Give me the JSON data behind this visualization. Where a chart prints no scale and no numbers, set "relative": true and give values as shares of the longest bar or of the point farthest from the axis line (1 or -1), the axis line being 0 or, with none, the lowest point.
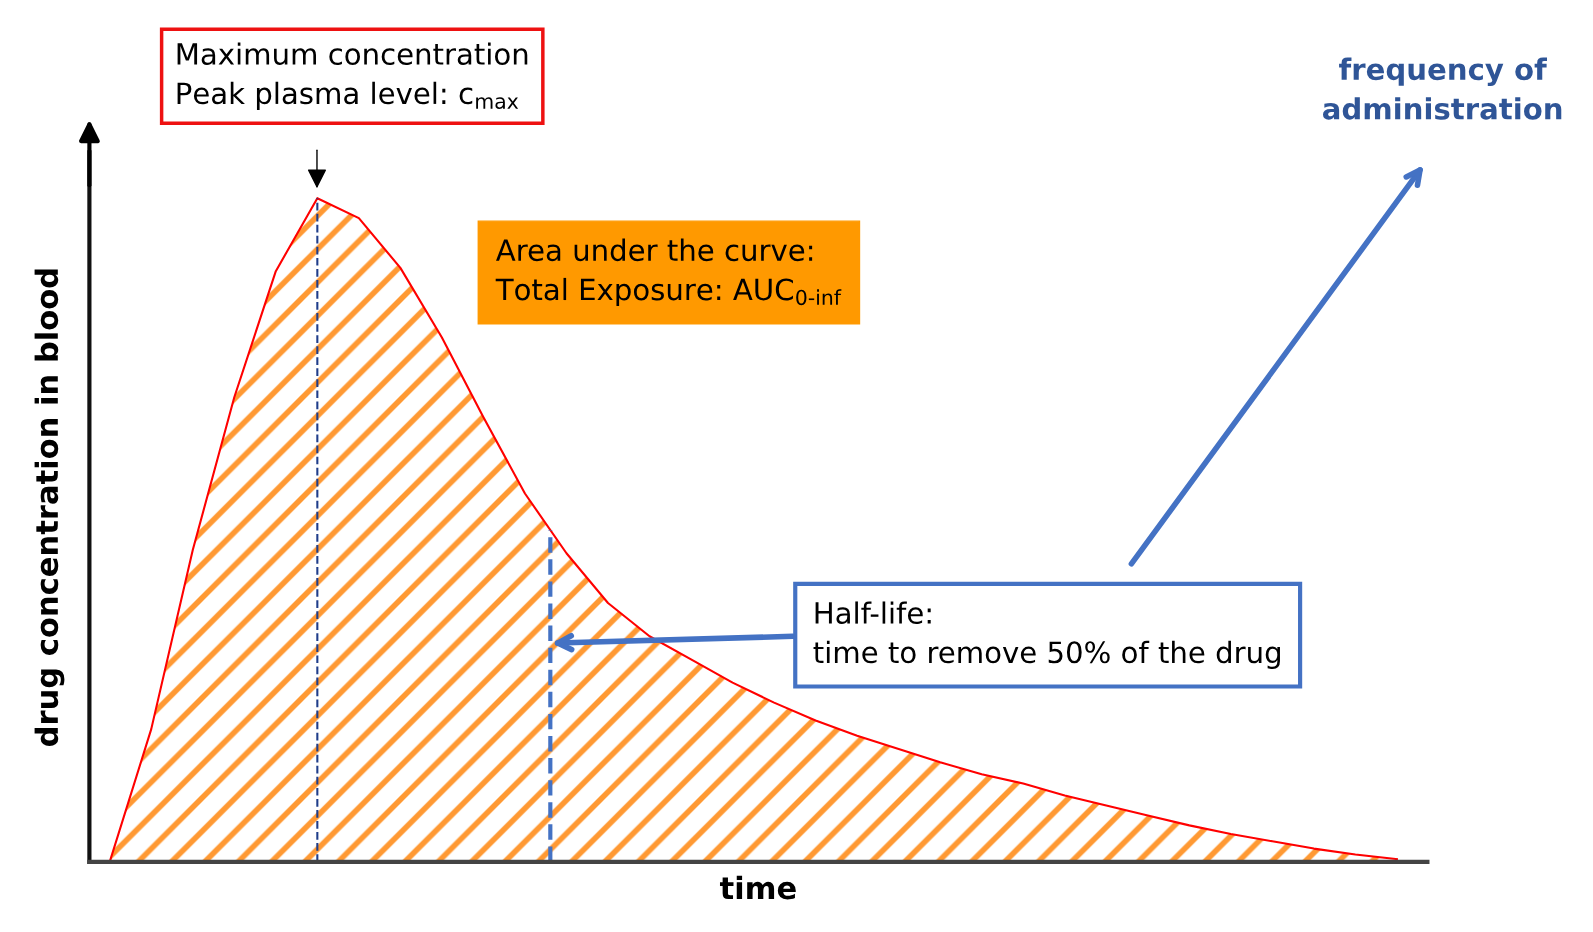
{
  "chart_data": {
    "type": "area",
    "relative": true,
    "xlabel": "time",
    "ylabel": "drug concentration in blood",
    "categories": [
      null,
      null,
      null,
      null,
      null,
      null,
      null,
      null,
      null,
      null,
      null,
      null,
      null,
      null,
      null,
      null,
      null,
      null,
      null,
      null,
      null,
      null,
      null,
      null,
      null,
      null,
      null,
      null,
      null,
      null,
      null,
      null
    ],
    "series": [
      {
        "color": "#ff0000",
        "values": [
          0,
          0.2,
          0.47,
          0.7,
          0.89,
          1.0,
          0.97,
          0.895,
          0.79,
          0.67,
          0.555,
          0.465,
          0.39,
          0.34,
          0.305,
          0.27,
          0.24,
          0.213,
          0.19,
          0.17,
          0.15,
          0.132,
          0.118,
          0.1,
          0.085,
          0.07,
          0.055,
          0.042,
          0.031,
          0.02,
          0.011,
          0.004
        ]
      }
    ],
    "annotations": [
      "Maximum concentration\nPeak plasma level: c$_{max}$",
      "Area under the curve:\nTotal Exposure: AUC$_{0-inf}$",
      "Half-life:\ntime to remove 50% of the drug",
      "frequency of\nadministration"
    ],
    "tick_labels": false,
    "legend": false
  }
}
